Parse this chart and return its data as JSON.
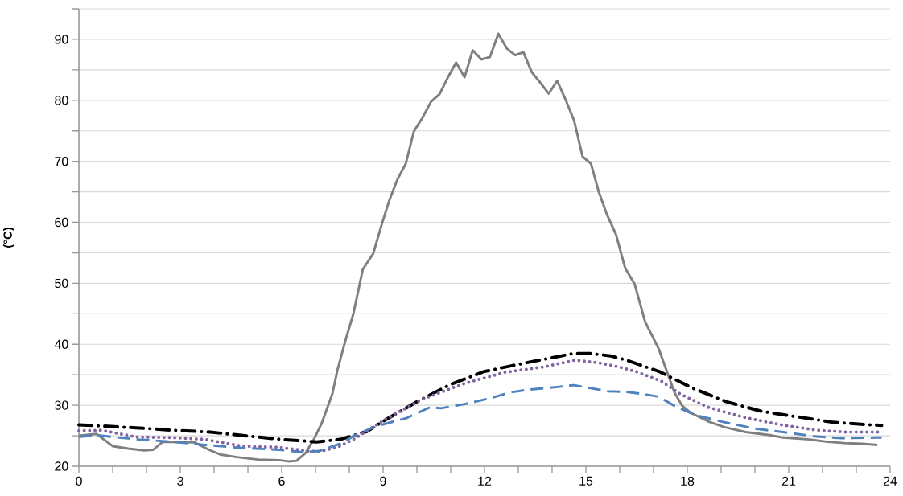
{
  "chart_data": {
    "type": "line",
    "ylabel": "(°C)",
    "grid": "y",
    "xlim": [
      0,
      24
    ],
    "ylim": [
      20,
      95
    ],
    "xticks": [
      0,
      {
        "value": 1,
        "label": null
      },
      {
        "value": 2,
        "label": null
      },
      3,
      {
        "value": 4,
        "label": null
      },
      {
        "value": 5,
        "label": null
      },
      6,
      {
        "value": 7,
        "label": null
      },
      {
        "value": 8,
        "label": null
      },
      9,
      {
        "value": 10,
        "label": null
      },
      {
        "value": 11,
        "label": null
      },
      12,
      {
        "value": 13,
        "label": null
      },
      {
        "value": 14,
        "label": null
      },
      15,
      {
        "value": 16,
        "label": null
      },
      {
        "value": 17,
        "label": null
      },
      18,
      {
        "value": 19,
        "label": null
      },
      {
        "value": 20,
        "label": null
      },
      21,
      {
        "value": 22,
        "label": null
      },
      {
        "value": 23,
        "label": null
      },
      24
    ],
    "yticks": [
      20,
      {
        "value": 25,
        "label": null
      },
      30,
      {
        "value": 35,
        "label": null
      },
      40,
      {
        "value": 45,
        "label": null
      },
      50,
      {
        "value": 55,
        "label": null
      },
      60,
      {
        "value": 65,
        "label": null
      },
      70,
      {
        "value": 75,
        "label": null
      },
      80,
      {
        "value": 85,
        "label": null
      },
      90,
      {
        "value": 95,
        "label": null
      }
    ],
    "series": [
      {
        "color": "#7f7f7f",
        "line_style": "solid",
        "x": [
          0,
          0.52,
          1.0,
          1.46,
          1.93,
          2.2,
          2.48,
          3.42,
          3.89,
          4.2,
          4.68,
          5.3,
          5.93,
          6.2,
          6.44,
          6.71,
          6.95,
          7.18,
          7.5,
          7.65,
          7.89,
          8.12,
          8.4,
          8.71,
          8.95,
          9.19,
          9.42,
          9.67,
          9.91,
          10.16,
          10.42,
          10.67,
          10.93,
          11.16,
          11.41,
          11.65,
          11.91,
          12.16,
          12.41,
          12.66,
          12.91,
          13.15,
          13.4,
          13.65,
          13.9,
          14.15,
          14.4,
          14.65,
          14.9,
          15.15,
          15.38,
          15.62,
          15.89,
          16.16,
          16.44,
          16.75,
          17.15,
          17.62,
          17.85,
          18.09,
          18.64,
          19.1,
          19.73,
          20.44,
          20.83,
          21.62,
          22.16,
          22.64,
          23.18,
          23.62
        ],
        "values": [
          25.0,
          25.3,
          23.3,
          22.9,
          22.6,
          22.7,
          24.0,
          23.9,
          22.6,
          21.9,
          21.5,
          21.1,
          21.0,
          20.8,
          20.9,
          22.2,
          24.4,
          27.0,
          31.9,
          35.8,
          40.7,
          45.0,
          52.3,
          54.9,
          59.5,
          63.7,
          67.0,
          69.6,
          74.9,
          77.1,
          79.8,
          81.0,
          83.9,
          86.2,
          83.8,
          88.2,
          86.7,
          87.1,
          90.9,
          88.5,
          87.4,
          87.9,
          84.6,
          82.9,
          81.1,
          83.2,
          80.1,
          76.7,
          70.8,
          69.6,
          65.0,
          61.3,
          58.0,
          52.5,
          49.9,
          43.7,
          39.3,
          32.1,
          29.9,
          28.8,
          27.3,
          26.4,
          25.6,
          25.1,
          24.7,
          24.4,
          24.0,
          23.8,
          23.7,
          23.5
        ]
      },
      {
        "color": "#000000",
        "line_style": "dashdot",
        "x": [
          0,
          1.69,
          2.79,
          3.89,
          4.91,
          6.01,
          7.03,
          7.73,
          8.52,
          9.07,
          10.01,
          10.95,
          11.97,
          12.99,
          14.09,
          14.64,
          15.11,
          15.73,
          16.2,
          17.18,
          18.16,
          19.15,
          20.2,
          21.26,
          22.32,
          23.38,
          23.75
        ],
        "values": [
          26.8,
          26.3,
          25.9,
          25.6,
          25.0,
          24.4,
          24.0,
          24.4,
          25.7,
          27.6,
          30.6,
          33.3,
          35.5,
          36.7,
          37.9,
          38.5,
          38.5,
          38.1,
          37.4,
          35.5,
          32.8,
          30.6,
          29.0,
          28.1,
          27.2,
          26.8,
          26.7
        ]
      },
      {
        "color": "#8064a2",
        "line_style": "dotted",
        "x": [
          0,
          0.67,
          1.69,
          2.79,
          3.73,
          4.83,
          5.93,
          6.79,
          7.11,
          7.65,
          8.12,
          9.07,
          10.16,
          11.42,
          12.6,
          13.77,
          14.67,
          15.34,
          15.97,
          16.44,
          17.22,
          17.77,
          18.6,
          19.62,
          20.75,
          21.85,
          22.71,
          23.42,
          23.75
        ],
        "values": [
          25.8,
          25.9,
          24.8,
          24.7,
          24.4,
          23.3,
          23.1,
          22.5,
          22.4,
          23.1,
          24.4,
          27.7,
          31.0,
          33.6,
          35.4,
          36.3,
          37.4,
          37.0,
          36.3,
          35.6,
          34.0,
          31.9,
          29.7,
          28.1,
          26.8,
          25.9,
          25.6,
          25.6,
          25.6
        ]
      },
      {
        "color": "#4f81bd",
        "line_style": "dashed",
        "x": [
          0,
          0.52,
          1.0,
          1.77,
          2.79,
          3.73,
          4.83,
          5.93,
          6.64,
          7.11,
          7.73,
          8.24,
          8.83,
          9.69,
          10.4,
          10.71,
          11.42,
          12.13,
          12.75,
          13.22,
          14.16,
          14.64,
          14.95,
          15.65,
          16.2,
          16.75,
          17.15,
          17.62,
          18.24,
          19.03,
          19.97,
          20.83,
          21.77,
          22.56,
          23.58,
          23.75
        ],
        "values": [
          24.8,
          25.1,
          24.8,
          24.4,
          24.0,
          23.5,
          23.0,
          22.7,
          22.3,
          22.5,
          23.7,
          25.3,
          26.6,
          27.9,
          29.7,
          29.5,
          30.2,
          31.1,
          32.1,
          32.5,
          33.0,
          33.3,
          33.0,
          32.3,
          32.2,
          31.8,
          31.4,
          29.9,
          28.4,
          27.3,
          26.2,
          25.6,
          24.9,
          24.6,
          24.7,
          24.7
        ]
      }
    ]
  }
}
